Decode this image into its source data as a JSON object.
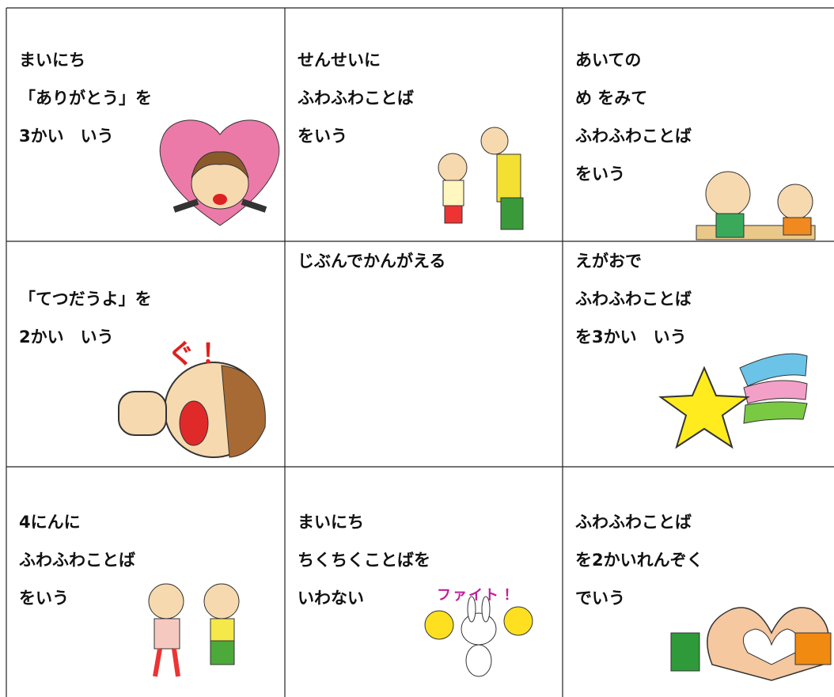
{
  "cells": [
    {
      "lines": [
        "まいにち",
        "「ありがとう」を",
        "3かい　いう"
      ]
    },
    {
      "lines": [
        "せんせいに",
        "ふわふわことば",
        "をいう"
      ]
    },
    {
      "lines": [
        "あいての",
        "め をみて",
        "ふわふわことば",
        "をいう"
      ]
    },
    {
      "lines": [
        "「てつだうよ」を",
        "2かい　いう"
      ],
      "badge": "ぐ！"
    },
    {
      "lines": [
        "じぶんでかんがえる"
      ]
    },
    {
      "lines": [
        "えがおで",
        "ふわふわことば",
        "を3かい　いう"
      ]
    },
    {
      "lines": [
        "4にんに",
        "ふわふわことば",
        "をいう"
      ]
    },
    {
      "lines": [
        "まいにち",
        "ちくちくことばを",
        "いわない"
      ],
      "badge": "ファイト！"
    },
    {
      "lines": [
        "ふわふわことば",
        "を2かいれんぞく",
        "でいう"
      ]
    }
  ]
}
